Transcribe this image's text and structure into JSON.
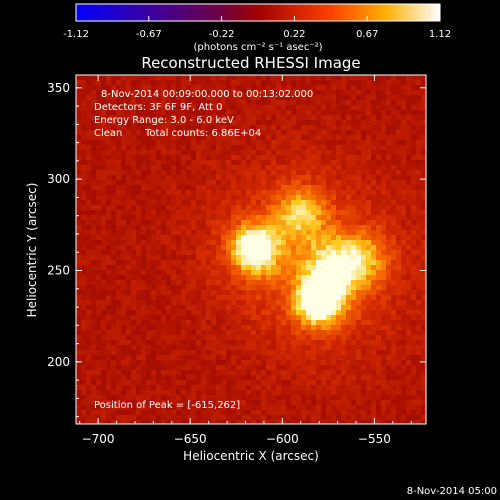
{
  "colorbar": {
    "ticks": [
      "-1.12",
      "-0.67",
      "-0.22",
      "0.22",
      "0.67",
      "1.12"
    ],
    "unit_label": "(photons cm⁻² s⁻¹ asec⁻²)",
    "colors": [
      "#0000ff",
      "#400080",
      "#800000",
      "#ff4000",
      "#ffc000",
      "#ffffff"
    ]
  },
  "chart_data": {
    "type": "heatmap",
    "title": "Reconstructed RHESSI Image",
    "xlabel": "Heliocentric X (arcsec)",
    "ylabel": "Heliocentric Y (arcsec)",
    "xlim": [
      -712,
      -522
    ],
    "ylim": [
      166,
      357
    ],
    "xticks": [
      -700,
      -650,
      -600,
      -550
    ],
    "yticks": [
      200,
      250,
      300,
      350
    ],
    "colormap": "red-temperature",
    "sources": [
      {
        "x": -615,
        "y": 262,
        "peak": 1.0,
        "sigma": 9
      },
      {
        "x": -580,
        "y": 232,
        "peak": 0.9,
        "sigma": 9
      },
      {
        "x": -572,
        "y": 251,
        "peak": 0.6,
        "sigma": 12
      },
      {
        "x": -590,
        "y": 282,
        "peak": 0.55,
        "sigma": 10
      },
      {
        "x": -555,
        "y": 257,
        "peak": 0.4,
        "sigma": 10
      }
    ],
    "annotations": {
      "time_range": "8-Nov-2014 00:09:00.000 to 00:13:02.000",
      "detectors": "Detectors: 3F 6F 9F, Att 0",
      "energy_range": "Energy Range: 3.0 - 6.0 keV",
      "clean_label": "Clean",
      "total_counts": "Total counts: 6.86E+04",
      "peak_position": "Position of Peak = [-615,262]"
    }
  },
  "footer": {
    "timestamp": "8-Nov-2014 05:00"
  }
}
